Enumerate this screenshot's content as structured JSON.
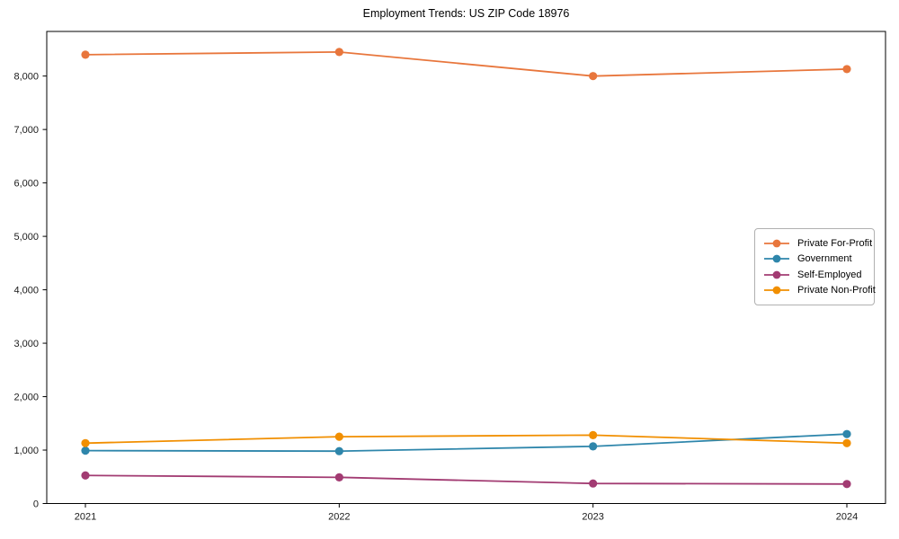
{
  "chart_data": {
    "type": "line",
    "title": "Employment Trends: US ZIP Code 18976",
    "categories": [
      "2021",
      "2022",
      "2023",
      "2024"
    ],
    "series": [
      {
        "name": "Private For-Profit",
        "color": "#E8763C",
        "values": [
          8400,
          8450,
          8000,
          8130
        ]
      },
      {
        "name": "Government",
        "color": "#2E86AB",
        "values": [
          990,
          980,
          1070,
          1300
        ]
      },
      {
        "name": "Self-Employed",
        "color": "#A23B72",
        "values": [
          525,
          490,
          375,
          365
        ]
      },
      {
        "name": "Private Non-Profit",
        "color": "#F18F01",
        "values": [
          1130,
          1250,
          1280,
          1130
        ]
      }
    ],
    "xlabel": "",
    "ylabel": "",
    "ylim": [
      0,
      8835
    ],
    "yticks": {
      "values": [
        0,
        1000,
        2000,
        3000,
        4000,
        5000,
        6000,
        7000,
        8000
      ],
      "labels": [
        "0",
        "1,000",
        "2,000",
        "3,000",
        "4,000",
        "5,000",
        "6,000",
        "7,000",
        "8,000"
      ]
    },
    "legend_position": "center right",
    "grid": false,
    "axis_color": "#000000",
    "tick_label_color": "#1a1a1a"
  }
}
